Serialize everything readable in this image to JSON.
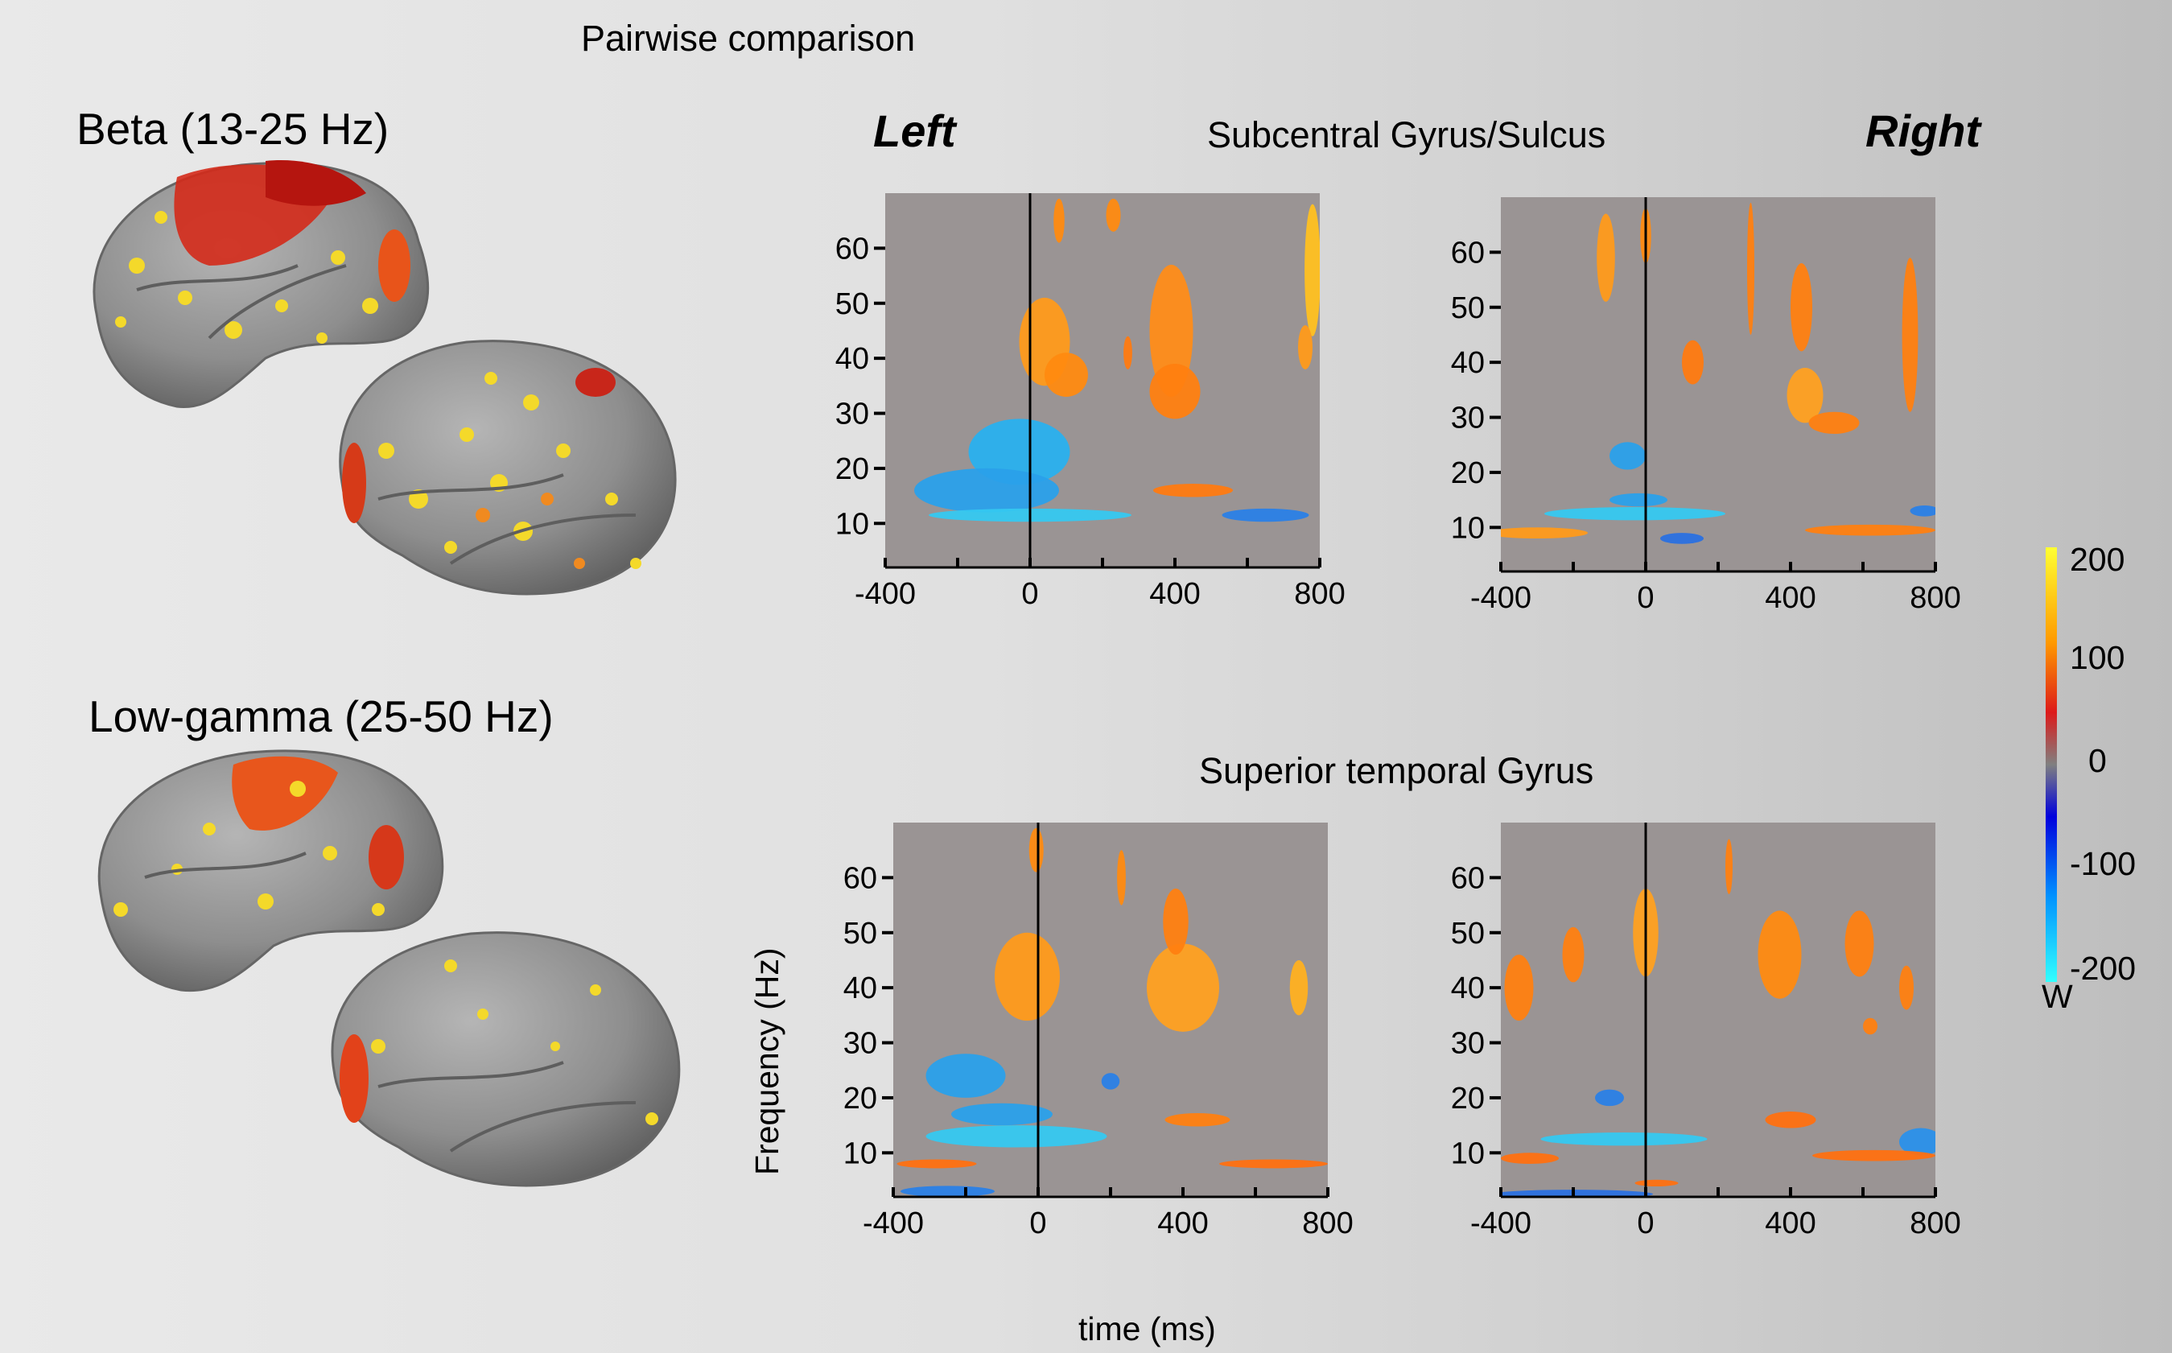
{
  "figure": {
    "title": "Pairwise comparison",
    "left_label": "Left",
    "right_label": "Right",
    "beta_label": "Beta (13-25 Hz)",
    "gamma_label": "Low-gamma (25-50 Hz)",
    "region_top": "Subcentral Gyrus/Sulcus",
    "region_bottom": "Superior temporal Gyrus",
    "ylabel": "Frequency (Hz)",
    "xlabel": "time (ms)"
  },
  "colorbar": {
    "ticks": [
      "200",
      "100",
      "0",
      "-100",
      "-200"
    ],
    "unit": "W",
    "colors": [
      "#ffff33",
      "#ff9900",
      "#dd1a1a",
      "#808080",
      "#0000dd",
      "#0090ff",
      "#33ffff"
    ]
  },
  "chart_data": [
    {
      "type": "heatmap",
      "panel": "Subcentral Gyrus/Sulcus - Left",
      "x_ticks": [
        "-400",
        "0",
        "400",
        "800"
      ],
      "y_ticks": [
        "60",
        "50",
        "40",
        "30",
        "20",
        "10"
      ],
      "xlim": [
        -400,
        800
      ],
      "ylim": [
        2,
        70
      ],
      "background": "#9a9494",
      "blobs": [
        {
          "t": -30,
          "f": 23,
          "rt": 140,
          "rf": 6,
          "c": "#29b0ee"
        },
        {
          "t": -120,
          "f": 16,
          "rt": 200,
          "rf": 4,
          "c": "#2aa0ea"
        },
        {
          "t": 0,
          "f": 11.5,
          "rt": 280,
          "rf": 1.2,
          "c": "#35c8f0"
        },
        {
          "t": 650,
          "f": 11.5,
          "rt": 120,
          "rf": 1.2,
          "c": "#2a80e6"
        },
        {
          "t": 40,
          "f": 43,
          "rt": 70,
          "rf": 8,
          "c": "#ff9a1a"
        },
        {
          "t": 100,
          "f": 37,
          "rt": 60,
          "rf": 4,
          "c": "#ff8a10"
        },
        {
          "t": 80,
          "f": 65,
          "rt": 15,
          "rf": 4,
          "c": "#ff8a10"
        },
        {
          "t": 390,
          "f": 45,
          "rt": 60,
          "rf": 12,
          "c": "#ff8c18"
        },
        {
          "t": 400,
          "f": 34,
          "rt": 70,
          "rf": 5,
          "c": "#ff8010"
        },
        {
          "t": 450,
          "f": 16,
          "rt": 110,
          "rf": 1.2,
          "c": "#ff7a10"
        },
        {
          "t": 780,
          "f": 56,
          "rt": 22,
          "rf": 12,
          "c": "#ffc020"
        },
        {
          "t": 760,
          "f": 42,
          "rt": 20,
          "rf": 4,
          "c": "#ff9a1a"
        },
        {
          "t": 230,
          "f": 66,
          "rt": 20,
          "rf": 3,
          "c": "#ff8a10"
        },
        {
          "t": 270,
          "f": 41,
          "rt": 12,
          "rf": 3,
          "c": "#ff7a10"
        }
      ]
    },
    {
      "type": "heatmap",
      "panel": "Subcentral Gyrus/Sulcus - Right",
      "x_ticks": [
        "-400",
        "0",
        "400",
        "800"
      ],
      "y_ticks": [
        "60",
        "50",
        "40",
        "30",
        "20",
        "10"
      ],
      "xlim": [
        -400,
        800
      ],
      "ylim": [
        2,
        70
      ],
      "background": "#9a9494",
      "blobs": [
        {
          "t": -50,
          "f": 23,
          "rt": 50,
          "rf": 2.5,
          "c": "#2aa0ea"
        },
        {
          "t": -20,
          "f": 15,
          "rt": 80,
          "rf": 1.2,
          "c": "#2aa0ea"
        },
        {
          "t": -30,
          "f": 12.5,
          "rt": 250,
          "rf": 1.2,
          "c": "#35c8f0"
        },
        {
          "t": 100,
          "f": 8,
          "rt": 60,
          "rf": 1,
          "c": "#2a70e0"
        },
        {
          "t": 770,
          "f": 13,
          "rt": 40,
          "rf": 1,
          "c": "#2a80e6"
        },
        {
          "t": -300,
          "f": 9,
          "rt": 140,
          "rf": 1,
          "c": "#ff9a1a"
        },
        {
          "t": 620,
          "f": 9.5,
          "rt": 180,
          "rf": 1,
          "c": "#ff8010"
        },
        {
          "t": -110,
          "f": 59,
          "rt": 25,
          "rf": 8,
          "c": "#ff9a1a"
        },
        {
          "t": 0,
          "f": 63,
          "rt": 15,
          "rf": 5,
          "c": "#ff8a10"
        },
        {
          "t": 440,
          "f": 34,
          "rt": 50,
          "rf": 5,
          "c": "#ffa020"
        },
        {
          "t": 430,
          "f": 50,
          "rt": 30,
          "rf": 8,
          "c": "#ff8010"
        },
        {
          "t": 520,
          "f": 29,
          "rt": 70,
          "rf": 2,
          "c": "#ff8010"
        },
        {
          "t": 730,
          "f": 45,
          "rt": 22,
          "rf": 14,
          "c": "#ff8010"
        },
        {
          "t": 130,
          "f": 40,
          "rt": 30,
          "rf": 4,
          "c": "#ff7a10"
        },
        {
          "t": 290,
          "f": 57,
          "rt": 10,
          "rf": 12,
          "c": "#ff8010"
        }
      ]
    },
    {
      "type": "heatmap",
      "panel": "Superior temporal Gyrus - Left",
      "x_ticks": [
        "-400",
        "0",
        "400",
        "800"
      ],
      "y_ticks": [
        "60",
        "50",
        "40",
        "30",
        "20",
        "10"
      ],
      "xlim": [
        -400,
        800
      ],
      "ylim": [
        2,
        70
      ],
      "background": "#9a9494",
      "blobs": [
        {
          "t": -200,
          "f": 24,
          "rt": 110,
          "rf": 4,
          "c": "#2aa0ea"
        },
        {
          "t": -100,
          "f": 17,
          "rt": 140,
          "rf": 2,
          "c": "#2aa0ea"
        },
        {
          "t": -60,
          "f": 13,
          "rt": 250,
          "rf": 2,
          "c": "#35c8f0"
        },
        {
          "t": 200,
          "f": 23,
          "rt": 25,
          "rf": 1.5,
          "c": "#2a80e6"
        },
        {
          "t": -250,
          "f": 3,
          "rt": 130,
          "rf": 1,
          "c": "#2a80e6"
        },
        {
          "t": -280,
          "f": 8,
          "rt": 110,
          "rf": 0.8,
          "c": "#ff7010"
        },
        {
          "t": 650,
          "f": 8,
          "rt": 150,
          "rf": 0.8,
          "c": "#ff7010"
        },
        {
          "t": -30,
          "f": 42,
          "rt": 90,
          "rf": 8,
          "c": "#ff9a1a"
        },
        {
          "t": 400,
          "f": 40,
          "rt": 100,
          "rf": 8,
          "c": "#ffa020"
        },
        {
          "t": 380,
          "f": 52,
          "rt": 35,
          "rf": 6,
          "c": "#ff8010"
        },
        {
          "t": 720,
          "f": 40,
          "rt": 25,
          "rf": 5,
          "c": "#ffb020"
        },
        {
          "t": 440,
          "f": 16,
          "rt": 90,
          "rf": 1.2,
          "c": "#ff8010"
        },
        {
          "t": 230,
          "f": 60,
          "rt": 12,
          "rf": 5,
          "c": "#ff8a10"
        },
        {
          "t": -5,
          "f": 65,
          "rt": 20,
          "rf": 4,
          "c": "#ff8a10"
        }
      ]
    },
    {
      "type": "heatmap",
      "panel": "Superior temporal Gyrus - Right",
      "x_ticks": [
        "-400",
        "0",
        "400",
        "800"
      ],
      "y_ticks": [
        "60",
        "50",
        "40",
        "30",
        "20",
        "10"
      ],
      "xlim": [
        -400,
        800
      ],
      "ylim": [
        2,
        70
      ],
      "background": "#9a9494",
      "blobs": [
        {
          "t": -100,
          "f": 20,
          "rt": 40,
          "rf": 1.5,
          "c": "#2a80e6"
        },
        {
          "t": -60,
          "f": 12.5,
          "rt": 230,
          "rf": 1.2,
          "c": "#35c8f0"
        },
        {
          "t": 760,
          "f": 12,
          "rt": 60,
          "rf": 2.5,
          "c": "#2a90ea"
        },
        {
          "t": -200,
          "f": 2.5,
          "rt": 220,
          "rf": 0.8,
          "c": "#2a70e0"
        },
        {
          "t": 30,
          "f": 4.5,
          "rt": 60,
          "rf": 0.6,
          "c": "#ff7010"
        },
        {
          "t": -320,
          "f": 9,
          "rt": 80,
          "rf": 1,
          "c": "#ff7010"
        },
        {
          "t": 630,
          "f": 9.5,
          "rt": 170,
          "rf": 1,
          "c": "#ff7010"
        },
        {
          "t": 0,
          "f": 50,
          "rt": 35,
          "rf": 8,
          "c": "#ffa020"
        },
        {
          "t": -350,
          "f": 40,
          "rt": 40,
          "rf": 6,
          "c": "#ff8010"
        },
        {
          "t": -200,
          "f": 46,
          "rt": 30,
          "rf": 5,
          "c": "#ff8010"
        },
        {
          "t": 370,
          "f": 46,
          "rt": 60,
          "rf": 8,
          "c": "#ff8a10"
        },
        {
          "t": 590,
          "f": 48,
          "rt": 40,
          "rf": 6,
          "c": "#ff8010"
        },
        {
          "t": 720,
          "f": 40,
          "rt": 20,
          "rf": 4,
          "c": "#ff8010"
        },
        {
          "t": 400,
          "f": 16,
          "rt": 70,
          "rf": 1.5,
          "c": "#ff7010"
        },
        {
          "t": 620,
          "f": 33,
          "rt": 20,
          "rf": 1.5,
          "c": "#ff8010"
        },
        {
          "t": 230,
          "f": 62,
          "rt": 10,
          "rf": 5,
          "c": "#ff8010"
        }
      ]
    }
  ]
}
